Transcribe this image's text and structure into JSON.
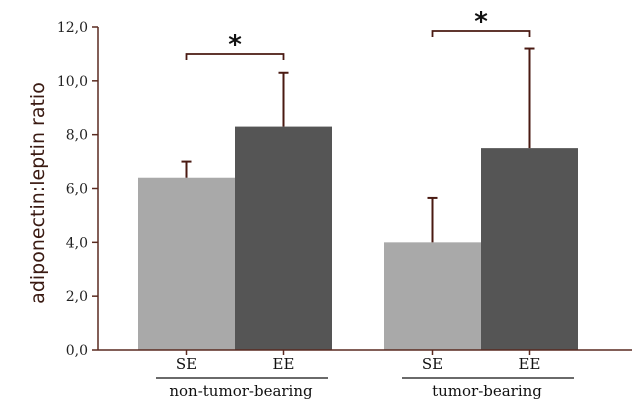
{
  "chart_data": {
    "type": "bar",
    "ylabel": "adiponectin:leptin ratio",
    "xlabel": "",
    "ylim": [
      0,
      12
    ],
    "yticks": [
      "0,0",
      "2,0",
      "4,0",
      "6,0",
      "8,0",
      "10,0",
      "12,0"
    ],
    "ytick_values": [
      0,
      2,
      4,
      6,
      8,
      10,
      12
    ],
    "groups": [
      {
        "label": "non-tumor-bearing",
        "bars": [
          {
            "category": "SE",
            "value": 6.4,
            "error": 0.6,
            "color": "#a9a9a9"
          },
          {
            "category": "EE",
            "value": 8.3,
            "error": 2.0,
            "color": "#555555"
          }
        ],
        "significance": "*"
      },
      {
        "label": "tumor-bearing",
        "bars": [
          {
            "category": "SE",
            "value": 4.0,
            "error": 1.65,
            "color": "#a9a9a9"
          },
          {
            "category": "EE",
            "value": 7.5,
            "error": 3.7,
            "color": "#555555"
          }
        ],
        "significance": "*"
      }
    ],
    "grid": false,
    "legend": "none",
    "colors": {
      "axis": "#5a2a20",
      "errorbar": "#4a1a12",
      "bracket": "#4a1a12"
    }
  }
}
